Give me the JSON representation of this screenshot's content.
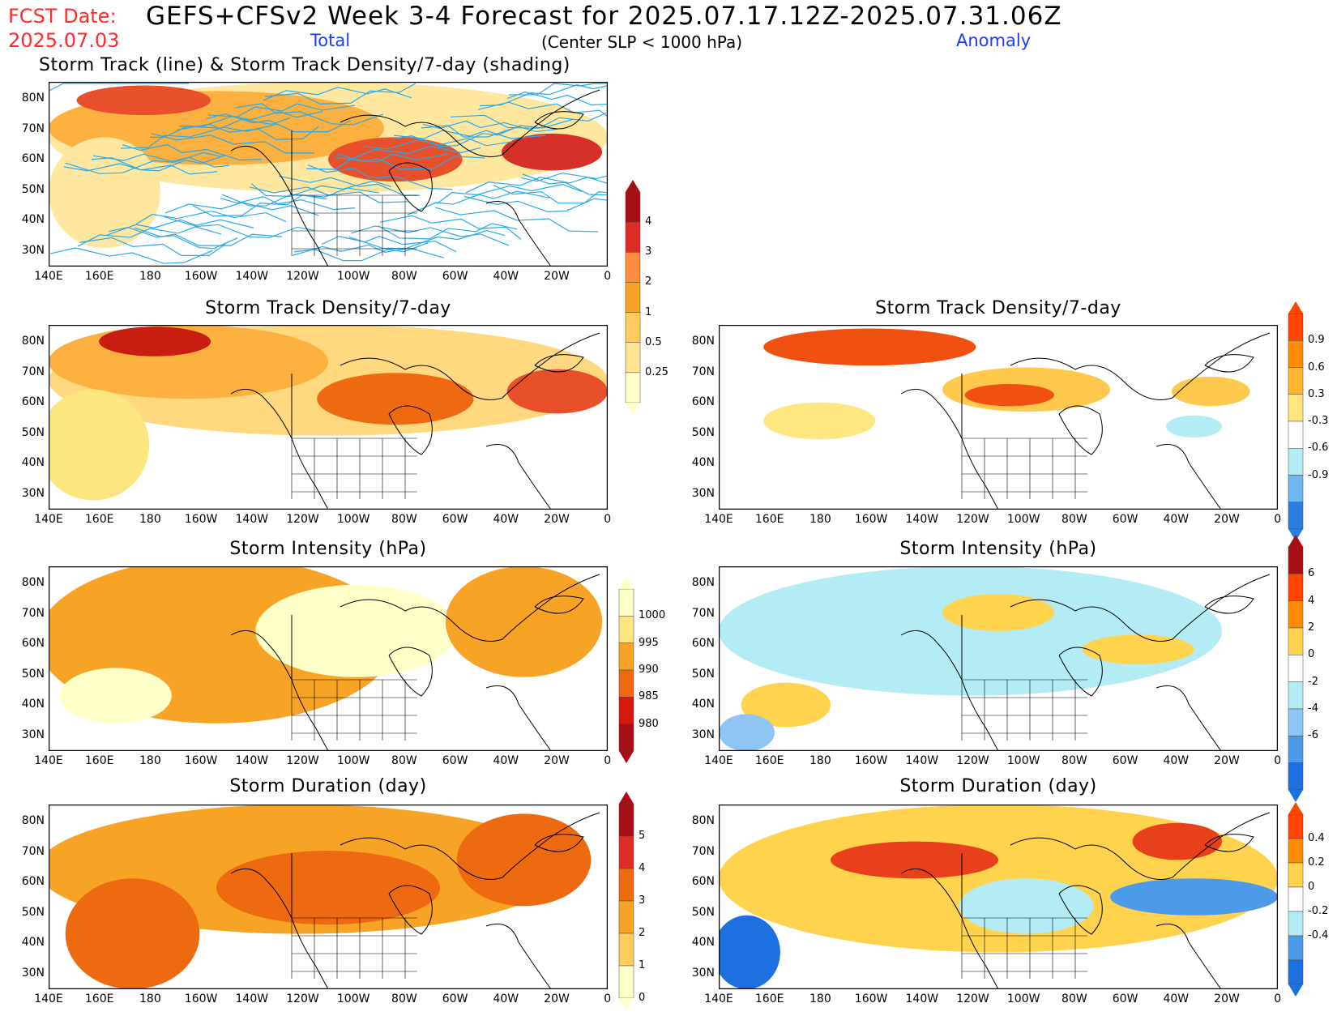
{
  "header": {
    "fcst_label": "FCST Date:",
    "fcst_date": "2025.07.03",
    "title": "GEFS+CFSv2 Week 3-4 Forecast for 2025.07.17.12Z-2025.07.31.06Z",
    "total_label": "Total",
    "criterion": "(Center SLP < 1000 hPa)",
    "anomaly_label": "Anomaly"
  },
  "axes": {
    "lat_labels": [
      "80N",
      "70N",
      "60N",
      "50N",
      "40N",
      "30N"
    ],
    "lon_labels": [
      "140E",
      "160E",
      "180",
      "160W",
      "140W",
      "120W",
      "100W",
      "80W",
      "60W",
      "40W",
      "20W",
      "0"
    ]
  },
  "panels": {
    "track": {
      "title": "Storm Track (line) & Storm Track Density/7-day (shading)"
    },
    "density_total": {
      "title": "Storm Track Density/7-day"
    },
    "density_anom": {
      "title": "Storm Track Density/7-day"
    },
    "intensity_total": {
      "title": "Storm Intensity (hPa)"
    },
    "intensity_anom": {
      "title": "Storm Intensity (hPa)"
    },
    "duration_total": {
      "title": "Storm Duration (day)"
    },
    "duration_anom": {
      "title": "Storm Duration (day)"
    }
  },
  "colorbars": {
    "density_total": {
      "labels": [
        "4",
        "3",
        "2",
        "1",
        "0.5",
        "0.25"
      ],
      "colors": [
        "#a50f15",
        "#de2d26",
        "#fd8d3c",
        "#f7a325",
        "#fecc5c",
        "#fee391",
        "#ffffcc"
      ]
    },
    "density_anom": {
      "labels": [
        "0.9",
        "0.6",
        "0.3",
        "-0.3",
        "-0.6",
        "-0.9"
      ],
      "colors": [
        "#ff4500",
        "#ff8c00",
        "#ffb732",
        "#ffe680",
        "#ffffff",
        "#b3ecf5",
        "#6fb7f0",
        "#2b7de0"
      ]
    },
    "intensity_total": {
      "labels": [
        "1000",
        "995",
        "990",
        "985",
        "980"
      ],
      "colors": [
        "#ffffc8",
        "#fde680",
        "#f7a325",
        "#ee6a10",
        "#d7190d",
        "#a50f15"
      ]
    },
    "intensity_anom": {
      "labels": [
        "6",
        "4",
        "2",
        "0",
        "-2",
        "-4",
        "-6"
      ],
      "colors": [
        "#a50f15",
        "#ff4500",
        "#ff8c00",
        "#ffd34d",
        "#ffffff",
        "#b3ecf5",
        "#8ec5f5",
        "#4d9be8",
        "#1e6fe0"
      ]
    },
    "duration_total": {
      "labels": [
        "5",
        "4",
        "3",
        "2",
        "1",
        "0"
      ],
      "colors": [
        "#a50f15",
        "#de2d26",
        "#ee6a10",
        "#f7a325",
        "#fecc5c",
        "#ffffc8"
      ]
    },
    "duration_anom": {
      "labels": [
        "0.4",
        "0.2",
        "0",
        "-0.2",
        "-0.4"
      ],
      "colors": [
        "#ff4500",
        "#ff8c00",
        "#ffd34d",
        "#ffffff",
        "#b3ecf5",
        "#4d9be8",
        "#1e6fe0"
      ]
    }
  }
}
